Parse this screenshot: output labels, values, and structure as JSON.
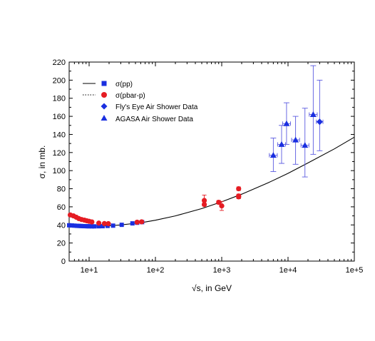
{
  "chart_data": {
    "type": "scatter",
    "title": "",
    "xlabel": "√s, in GeV",
    "ylabel": "σ, in mb.",
    "xscale": "log",
    "xlim": [
      5,
      100000
    ],
    "ylim": [
      0,
      220
    ],
    "yticks": [
      0,
      20,
      40,
      60,
      80,
      100,
      120,
      140,
      160,
      180,
      200,
      220
    ],
    "xticks": [
      10,
      100,
      1000,
      10000,
      100000
    ],
    "xtick_labels": [
      "1e+1",
      "1e+2",
      "1e+3",
      "1e+4",
      "1e+5"
    ],
    "grid": false,
    "legend_position": "top-left",
    "legend": [
      {
        "line": "solid",
        "marker": "square",
        "label": "σ(pp)"
      },
      {
        "line": "dotted",
        "marker": "circle",
        "label": "σ(pbar-p)"
      },
      {
        "line": "none",
        "marker": "diamond",
        "label": "Fly's Eye Air Shower Data"
      },
      {
        "line": "none",
        "marker": "triangle",
        "label": "AGASA Air Shower Data"
      }
    ],
    "colors": {
      "pp": "#1a2fe0",
      "pbarp": "#e51c23",
      "air": "#1a2fe0",
      "errorbar": "#5a5ae0",
      "curve": "#000000"
    },
    "series": [
      {
        "key": "pp",
        "marker": "square",
        "points": [
          {
            "x": 5.0,
            "y": 39.6
          },
          {
            "x": 5.5,
            "y": 39.4
          },
          {
            "x": 6.0,
            "y": 39.2
          },
          {
            "x": 6.5,
            "y": 39.0
          },
          {
            "x": 7.0,
            "y": 38.9
          },
          {
            "x": 7.5,
            "y": 38.8
          },
          {
            "x": 8.0,
            "y": 38.7
          },
          {
            "x": 8.5,
            "y": 38.6
          },
          {
            "x": 9.0,
            "y": 38.6
          },
          {
            "x": 9.5,
            "y": 38.5
          },
          {
            "x": 10.0,
            "y": 38.5
          },
          {
            "x": 11.0,
            "y": 38.4
          },
          {
            "x": 12.0,
            "y": 38.4
          },
          {
            "x": 14.0,
            "y": 38.5
          },
          {
            "x": 16.0,
            "y": 38.6
          },
          {
            "x": 19.0,
            "y": 38.9
          },
          {
            "x": 23.0,
            "y": 39.2
          },
          {
            "x": 31.0,
            "y": 40.1
          },
          {
            "x": 45.0,
            "y": 41.7
          },
          {
            "x": 53.0,
            "y": 42.4
          },
          {
            "x": 63.0,
            "y": 43.1
          }
        ]
      },
      {
        "key": "pbarp",
        "marker": "circle",
        "points": [
          {
            "x": 5.2,
            "y": 51.0,
            "yerr": 1.5
          },
          {
            "x": 5.8,
            "y": 50.0,
            "yerr": 1.5
          },
          {
            "x": 6.4,
            "y": 48.5,
            "yerr": 1.0
          },
          {
            "x": 7.0,
            "y": 47.0,
            "yerr": 1.0
          },
          {
            "x": 7.7,
            "y": 46.0,
            "yerr": 1.0
          },
          {
            "x": 8.5,
            "y": 45.3,
            "yerr": 1.0
          },
          {
            "x": 9.2,
            "y": 44.6,
            "yerr": 1.0
          },
          {
            "x": 10.0,
            "y": 44.0,
            "yerr": 1.0
          },
          {
            "x": 11.0,
            "y": 43.3,
            "yerr": 1.0
          },
          {
            "x": 14.0,
            "y": 42.0,
            "yerr": 1.0
          },
          {
            "x": 17.0,
            "y": 41.5,
            "yerr": 1.0
          },
          {
            "x": 19.5,
            "y": 41.4,
            "yerr": 1.0
          },
          {
            "x": 53.0,
            "y": 43.0,
            "yerr": 1.0
          },
          {
            "x": 62.0,
            "y": 43.4,
            "yerr": 1.0
          },
          {
            "x": 546.0,
            "y": 67.0,
            "yerr": 6.0
          },
          {
            "x": 546.0,
            "y": 62.5,
            "yerr": 1.5
          },
          {
            "x": 900.0,
            "y": 65.0,
            "yerr": 2.0
          },
          {
            "x": 1000.0,
            "y": 61.0,
            "yerr": 5.0
          },
          {
            "x": 1800.0,
            "y": 72.0,
            "yerr": 2.0
          },
          {
            "x": 1800.0,
            "y": 71.0,
            "yerr": 2.0
          },
          {
            "x": 1800.0,
            "y": 80.0,
            "yerr": 2.0
          }
        ]
      },
      {
        "key": "air",
        "marker": "diamond",
        "points": [
          {
            "x": 30000,
            "y": 154,
            "yerr_low": 32,
            "yerr_high": 46,
            "xerr_log": 0.05
          }
        ]
      },
      {
        "key": "air",
        "marker": "triangle",
        "points": [
          {
            "x": 6000,
            "y": 117,
            "yerr_low": 18,
            "yerr_high": 19,
            "xerr_log": 0.06
          },
          {
            "x": 8000,
            "y": 129,
            "yerr_low": 21,
            "yerr_high": 21,
            "xerr_log": 0.06
          },
          {
            "x": 9500,
            "y": 152,
            "yerr_low": 23,
            "yerr_high": 23,
            "xerr_log": 0.06
          },
          {
            "x": 13000,
            "y": 134,
            "yerr_low": 27,
            "yerr_high": 26,
            "xerr_log": 0.06
          },
          {
            "x": 18000,
            "y": 128,
            "yerr_low": 35,
            "yerr_high": 41,
            "xerr_log": 0.06
          },
          {
            "x": 24000,
            "y": 162,
            "yerr_low": 44,
            "yerr_high": 54,
            "xerr_log": 0.06
          }
        ]
      }
    ],
    "curves": [
      {
        "key": "fit",
        "style": "solid",
        "x": [
          5,
          7,
          10,
          15,
          20,
          30,
          50,
          70,
          100,
          200,
          500,
          1000,
          2000,
          5000,
          10000,
          20000,
          50000,
          100000
        ],
        "y": [
          40.0,
          39.0,
          38.6,
          38.7,
          39.0,
          40.0,
          41.8,
          43.2,
          45.2,
          50.0,
          58.0,
          65.5,
          74.0,
          86.5,
          97.0,
          108.5,
          124.0,
          137.0
        ]
      }
    ]
  }
}
